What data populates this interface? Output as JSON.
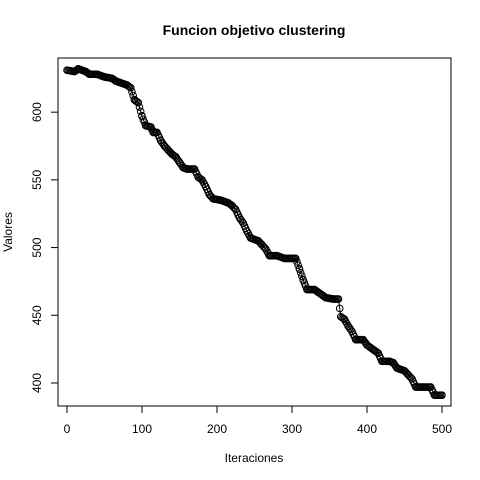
{
  "chart_data": {
    "type": "scatter",
    "title": "Funcion objetivo clustering",
    "xlabel": "Iteraciones",
    "ylabel": "Valores",
    "xlim": [
      -12,
      512
    ],
    "ylim": [
      383,
      640
    ],
    "xticks": [
      0,
      100,
      200,
      300,
      400,
      500
    ],
    "yticks": [
      400,
      450,
      500,
      550,
      600
    ],
    "grid": false,
    "marker": "open-circle",
    "line": true,
    "color": "#000000",
    "series": [
      {
        "values": [
          [
            0,
            631
          ],
          [
            10,
            630
          ],
          [
            15,
            632
          ],
          [
            25,
            630
          ],
          [
            30,
            628
          ],
          [
            40,
            628
          ],
          [
            45,
            627
          ],
          [
            50,
            626
          ],
          [
            60,
            625
          ],
          [
            65,
            623
          ],
          [
            70,
            622
          ],
          [
            80,
            620
          ],
          [
            85,
            618
          ],
          [
            90,
            609
          ],
          [
            95,
            607
          ],
          [
            100,
            597
          ],
          [
            105,
            590
          ],
          [
            112,
            589
          ],
          [
            115,
            585
          ],
          [
            120,
            585
          ],
          [
            125,
            579
          ],
          [
            130,
            575
          ],
          [
            135,
            572
          ],
          [
            140,
            569
          ],
          [
            145,
            567
          ],
          [
            150,
            563
          ],
          [
            155,
            559
          ],
          [
            160,
            558
          ],
          [
            170,
            558
          ],
          [
            175,
            552
          ],
          [
            180,
            550
          ],
          [
            185,
            545
          ],
          [
            190,
            539
          ],
          [
            195,
            536
          ],
          [
            205,
            535
          ],
          [
            215,
            533
          ],
          [
            220,
            531
          ],
          [
            225,
            528
          ],
          [
            230,
            522
          ],
          [
            235,
            518
          ],
          [
            240,
            512
          ],
          [
            245,
            507
          ],
          [
            255,
            505
          ],
          [
            260,
            502
          ],
          [
            265,
            499
          ],
          [
            270,
            494
          ],
          [
            280,
            494
          ],
          [
            290,
            492
          ],
          [
            300,
            492
          ],
          [
            305,
            492
          ],
          [
            310,
            484
          ],
          [
            315,
            476
          ],
          [
            320,
            469
          ],
          [
            330,
            469
          ],
          [
            335,
            467
          ],
          [
            340,
            465
          ],
          [
            345,
            463
          ],
          [
            355,
            462
          ],
          [
            362,
            462
          ],
          [
            365,
            449
          ],
          [
            370,
            447
          ],
          [
            375,
            442
          ],
          [
            380,
            438
          ],
          [
            385,
            432
          ],
          [
            395,
            432
          ],
          [
            400,
            428
          ],
          [
            410,
            424
          ],
          [
            415,
            422
          ],
          [
            420,
            416
          ],
          [
            430,
            416
          ],
          [
            435,
            415
          ],
          [
            440,
            411
          ],
          [
            450,
            409
          ],
          [
            455,
            406
          ],
          [
            460,
            403
          ],
          [
            465,
            397
          ],
          [
            475,
            397
          ],
          [
            485,
            397
          ],
          [
            490,
            391
          ],
          [
            500,
            391
          ]
        ]
      }
    ]
  }
}
